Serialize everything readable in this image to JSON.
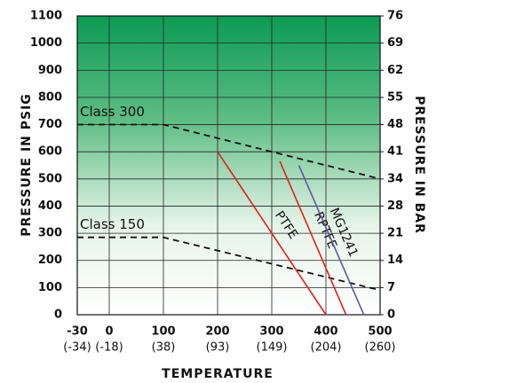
{
  "chart_data": {
    "type": "line",
    "y_label": "PRESSURE IN PSIG",
    "y2_label": "PRESSURE IN BAR",
    "x_label": "TEMPERATURE",
    "xlim": [
      -30,
      500
    ],
    "xticks": [
      -30,
      0,
      100,
      200,
      300,
      400,
      500
    ],
    "xtick_sublabels": [
      "(-34)",
      "(-18)",
      "(38)",
      "(93)",
      "(149)",
      "(204)",
      "(260)"
    ],
    "ylim": [
      0,
      1100
    ],
    "yticks": [
      0,
      100,
      200,
      300,
      400,
      500,
      600,
      700,
      800,
      900,
      1000,
      1100
    ],
    "y2lim": [
      0,
      75.84
    ],
    "y2ticks": [
      0,
      {
        "value": 6.89,
        "label": "7"
      },
      {
        "value": 13.79,
        "label": "14"
      },
      {
        "value": 20.68,
        "label": "21"
      },
      {
        "value": 27.58,
        "label": "28"
      },
      {
        "value": 34.47,
        "label": "34"
      },
      {
        "value": 41.37,
        "label": "41"
      },
      {
        "value": 48.26,
        "label": "48"
      },
      {
        "value": 55.16,
        "label": "55"
      },
      {
        "value": 62.05,
        "label": "62"
      },
      {
        "value": 68.95,
        "label": "69"
      },
      {
        "value": 75.84,
        "label": "76"
      }
    ],
    "grid": true,
    "series": [
      {
        "name": "Class 300",
        "color": "#111111",
        "label_color": "#2b3a8c",
        "dashed": true,
        "x": [
          -30,
          100,
          500
        ],
        "values": [
          700,
          700,
          500
        ]
      },
      {
        "name": "Class 150",
        "color": "#111111",
        "label_color": "#2b3a8c",
        "dashed": true,
        "x": [
          -30,
          100,
          500
        ],
        "values": [
          285,
          285,
          90
        ]
      },
      {
        "name": "PTFE",
        "color": "#e02020",
        "label_color": "#333333",
        "dashed": false,
        "x": [
          200,
          400
        ],
        "values": [
          600,
          0
        ]
      },
      {
        "name": "RPTFE",
        "color": "#e02020",
        "label_color": "#333333",
        "dashed": false,
        "x": [
          315,
          437
        ],
        "values": [
          565,
          0
        ]
      },
      {
        "name": "MG1241",
        "color": "#5b5ba8",
        "label_color": "#333333",
        "dashed": false,
        "x": [
          350,
          470
        ],
        "values": [
          550,
          0
        ]
      }
    ]
  }
}
